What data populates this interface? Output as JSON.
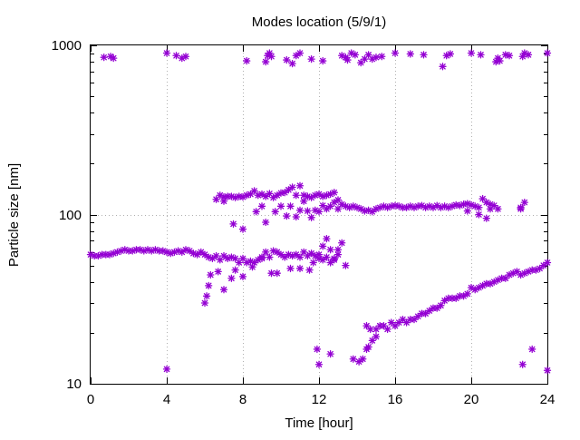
{
  "chart_data": {
    "type": "scatter",
    "title": "Modes location (5/9/1)",
    "xlabel": "Time [hour]",
    "ylabel": "Particle size [nm]",
    "xlim": [
      0,
      24
    ],
    "ylim": [
      10,
      1000
    ],
    "yscale": "log",
    "grid": true,
    "legend": "none",
    "marker": "star",
    "color": "#9400d3",
    "xticks": [
      0,
      4,
      8,
      12,
      16,
      20,
      24
    ],
    "xtick_labels": [
      "0",
      "4",
      "8",
      "12",
      "16",
      "20",
      "24"
    ],
    "yticks": [
      10,
      100,
      1000
    ],
    "ytick_labels": [
      "10",
      "100",
      "1000"
    ],
    "series": [
      {
        "points": [
          [
            0.7,
            850
          ],
          [
            1.2,
            840
          ],
          [
            1.05,
            860
          ],
          [
            4.0,
            900
          ],
          [
            4.5,
            870
          ],
          [
            4.8,
            840
          ],
          [
            5.0,
            860
          ],
          [
            8.2,
            810
          ],
          [
            9.2,
            800
          ],
          [
            9.3,
            870
          ],
          [
            9.4,
            900
          ],
          [
            9.5,
            860
          ],
          [
            10.3,
            820
          ],
          [
            10.6,
            780
          ],
          [
            10.8,
            870
          ],
          [
            11.0,
            900
          ],
          [
            11.6,
            830
          ],
          [
            12.2,
            810
          ],
          [
            13.2,
            870
          ],
          [
            13.4,
            850
          ],
          [
            13.5,
            820
          ],
          [
            13.7,
            900
          ],
          [
            13.9,
            880
          ],
          [
            14.2,
            790
          ],
          [
            14.4,
            830
          ],
          [
            14.6,
            880
          ],
          [
            14.8,
            830
          ],
          [
            15.0,
            850
          ],
          [
            15.3,
            860
          ],
          [
            16.0,
            900
          ],
          [
            16.8,
            890
          ],
          [
            17.5,
            880
          ],
          [
            18.5,
            750
          ],
          [
            18.7,
            870
          ],
          [
            18.9,
            890
          ],
          [
            20.0,
            900
          ],
          [
            20.5,
            880
          ],
          [
            21.3,
            800
          ],
          [
            21.4,
            840
          ],
          [
            21.5,
            810
          ],
          [
            21.8,
            880
          ],
          [
            22.0,
            870
          ],
          [
            22.7,
            860
          ],
          [
            22.8,
            900
          ],
          [
            23.0,
            880
          ],
          [
            24.0,
            900
          ]
        ]
      },
      {
        "points": [
          [
            0.0,
            58
          ],
          [
            0.2,
            57
          ],
          [
            0.4,
            57
          ],
          [
            0.6,
            58
          ],
          [
            0.8,
            58
          ],
          [
            1.0,
            58
          ],
          [
            1.2,
            59
          ],
          [
            1.4,
            60
          ],
          [
            1.6,
            61
          ],
          [
            1.8,
            62
          ],
          [
            2.0,
            61
          ],
          [
            2.2,
            61
          ],
          [
            2.4,
            62
          ],
          [
            2.6,
            62
          ],
          [
            2.8,
            61
          ],
          [
            3.0,
            62
          ],
          [
            3.2,
            61
          ],
          [
            3.4,
            62
          ],
          [
            3.6,
            61
          ],
          [
            3.8,
            61
          ],
          [
            4.0,
            60
          ],
          [
            4.2,
            59
          ],
          [
            4.4,
            60
          ],
          [
            4.6,
            61
          ],
          [
            4.8,
            60
          ],
          [
            5.0,
            62
          ],
          [
            5.2,
            61
          ],
          [
            5.4,
            59
          ],
          [
            5.6,
            58
          ],
          [
            5.8,
            60
          ],
          [
            6.0,
            58
          ],
          [
            6.2,
            56
          ],
          [
            6.4,
            55
          ],
          [
            6.6,
            57
          ],
          [
            6.8,
            54
          ],
          [
            7.0,
            57
          ],
          [
            7.2,
            55
          ],
          [
            7.4,
            56
          ],
          [
            7.6,
            55
          ],
          [
            7.8,
            52
          ],
          [
            8.0,
            55
          ],
          [
            8.2,
            52
          ],
          [
            8.4,
            53
          ],
          [
            8.6,
            52
          ],
          [
            8.8,
            54
          ],
          [
            9.0,
            55
          ],
          [
            9.2,
            60
          ],
          [
            9.4,
            56
          ],
          [
            9.6,
            61
          ],
          [
            9.8,
            60
          ],
          [
            10.0,
            58
          ],
          [
            10.2,
            56
          ],
          [
            10.4,
            58
          ],
          [
            10.6,
            57
          ],
          [
            10.8,
            58
          ],
          [
            11.0,
            56
          ],
          [
            11.2,
            60
          ],
          [
            11.4,
            57
          ],
          [
            11.6,
            59
          ],
          [
            11.8,
            57
          ],
          [
            12.0,
            58
          ],
          [
            12.2,
            54
          ],
          [
            12.4,
            56
          ],
          [
            12.6,
            52
          ],
          [
            12.8,
            55
          ],
          [
            13.0,
            58
          ]
        ]
      },
      {
        "points": [
          [
            6.0,
            30
          ],
          [
            6.1,
            33
          ],
          [
            6.2,
            38
          ],
          [
            6.3,
            44
          ],
          [
            6.7,
            46
          ],
          [
            7.0,
            36
          ],
          [
            7.4,
            42
          ],
          [
            7.6,
            47
          ],
          [
            8.0,
            43
          ],
          [
            8.5,
            49
          ],
          [
            9.0,
            56
          ],
          [
            9.5,
            45
          ],
          [
            9.8,
            45
          ],
          [
            10.5,
            48
          ],
          [
            11.0,
            48
          ],
          [
            11.5,
            47
          ],
          [
            11.7,
            52
          ],
          [
            12.0,
            55
          ],
          [
            12.2,
            65
          ],
          [
            12.4,
            72
          ],
          [
            12.6,
            62
          ],
          [
            12.8,
            54
          ],
          [
            13.0,
            62
          ],
          [
            13.2,
            68
          ],
          [
            13.4,
            50
          ]
        ]
      },
      {
        "points": [
          [
            6.6,
            123
          ],
          [
            6.8,
            130
          ],
          [
            7.0,
            127
          ],
          [
            7.2,
            128
          ],
          [
            7.4,
            128
          ],
          [
            7.6,
            126
          ],
          [
            7.8,
            128
          ],
          [
            8.0,
            127
          ],
          [
            8.2,
            130
          ],
          [
            8.4,
            132
          ],
          [
            8.6,
            138
          ],
          [
            8.8,
            130
          ],
          [
            9.0,
            132
          ],
          [
            9.2,
            128
          ],
          [
            9.4,
            133
          ],
          [
            9.6,
            126
          ],
          [
            9.8,
            130
          ],
          [
            10.0,
            134
          ],
          [
            10.2,
            135
          ],
          [
            10.4,
            140
          ],
          [
            10.6,
            145
          ],
          [
            10.8,
            130
          ],
          [
            11.0,
            148
          ],
          [
            11.2,
            130
          ],
          [
            11.4,
            128
          ],
          [
            11.6,
            126
          ],
          [
            11.8,
            130
          ],
          [
            12.0,
            132
          ],
          [
            12.2,
            128
          ],
          [
            12.4,
            130
          ],
          [
            12.6,
            132
          ],
          [
            12.8,
            135
          ],
          [
            13.0,
            122
          ],
          [
            13.2,
            115
          ],
          [
            13.4,
            112
          ],
          [
            13.6,
            110
          ],
          [
            13.8,
            112
          ],
          [
            14.0,
            110
          ],
          [
            14.2,
            108
          ],
          [
            14.4,
            105
          ],
          [
            14.6,
            106
          ],
          [
            14.8,
            104
          ],
          [
            15.0,
            108
          ],
          [
            15.2,
            110
          ],
          [
            15.4,
            112
          ],
          [
            15.6,
            110
          ],
          [
            15.8,
            112
          ],
          [
            16.0,
            113
          ],
          [
            16.2,
            112
          ],
          [
            16.4,
            110
          ],
          [
            16.6,
            110
          ],
          [
            16.8,
            112
          ],
          [
            17.0,
            110
          ],
          [
            17.2,
            112
          ],
          [
            17.4,
            113
          ],
          [
            17.6,
            110
          ],
          [
            17.8,
            112
          ],
          [
            18.0,
            110
          ],
          [
            18.2,
            113
          ],
          [
            18.4,
            110
          ],
          [
            18.6,
            112
          ],
          [
            18.8,
            110
          ],
          [
            19.0,
            112
          ],
          [
            19.2,
            114
          ],
          [
            19.4,
            113
          ],
          [
            19.6,
            115
          ],
          [
            19.8,
            116
          ],
          [
            20.0,
            114
          ],
          [
            20.2,
            112
          ],
          [
            20.4,
            110
          ],
          [
            20.6,
            124
          ],
          [
            20.8,
            118
          ],
          [
            21.0,
            115
          ],
          [
            21.2,
            113
          ],
          [
            21.4,
            108
          ],
          [
            22.6,
            108
          ],
          [
            22.8,
            118
          ]
        ]
      },
      {
        "points": [
          [
            7.0,
            120
          ],
          [
            7.5,
            88
          ],
          [
            8.0,
            82
          ],
          [
            8.7,
            104
          ],
          [
            9.0,
            112
          ],
          [
            9.2,
            90
          ],
          [
            9.7,
            104
          ],
          [
            10.0,
            112
          ],
          [
            10.3,
            98
          ],
          [
            10.5,
            112
          ],
          [
            10.8,
            97
          ],
          [
            11.0,
            106
          ],
          [
            11.2,
            120
          ],
          [
            11.4,
            105
          ],
          [
            11.6,
            96
          ],
          [
            11.8,
            106
          ],
          [
            12.0,
            104
          ],
          [
            12.2,
            113
          ],
          [
            12.4,
            108
          ],
          [
            12.6,
            112
          ],
          [
            12.8,
            118
          ],
          [
            13.0,
            108
          ],
          [
            19.8,
            105
          ],
          [
            20.4,
            100
          ],
          [
            20.8,
            95
          ],
          [
            21.0,
            108
          ],
          [
            22.6,
            110
          ]
        ]
      },
      {
        "points": [
          [
            14.5,
            22
          ],
          [
            14.7,
            21
          ],
          [
            15.0,
            21
          ],
          [
            15.2,
            22
          ],
          [
            15.4,
            22
          ],
          [
            15.6,
            21
          ],
          [
            15.8,
            23
          ],
          [
            16.0,
            22
          ],
          [
            16.2,
            23
          ],
          [
            16.4,
            24
          ],
          [
            16.6,
            23
          ],
          [
            16.8,
            24
          ],
          [
            17.0,
            24
          ],
          [
            17.2,
            25
          ],
          [
            17.4,
            26
          ],
          [
            17.6,
            26
          ],
          [
            17.8,
            27
          ],
          [
            18.0,
            28
          ],
          [
            18.2,
            28
          ],
          [
            18.4,
            29
          ],
          [
            18.6,
            31
          ],
          [
            18.8,
            32
          ],
          [
            19.0,
            32
          ],
          [
            19.2,
            32
          ],
          [
            19.4,
            33
          ],
          [
            19.6,
            33
          ],
          [
            19.8,
            34
          ],
          [
            20.0,
            37
          ],
          [
            20.2,
            36
          ],
          [
            20.4,
            37
          ],
          [
            20.6,
            38
          ],
          [
            20.8,
            39
          ],
          [
            21.0,
            39
          ],
          [
            21.2,
            40
          ],
          [
            21.4,
            41
          ],
          [
            21.6,
            42
          ],
          [
            21.8,
            42
          ],
          [
            22.0,
            44
          ],
          [
            22.2,
            45
          ],
          [
            22.4,
            46
          ],
          [
            22.6,
            44
          ],
          [
            22.8,
            45
          ],
          [
            23.0,
            46
          ],
          [
            23.2,
            47
          ],
          [
            23.4,
            47
          ],
          [
            23.6,
            48
          ],
          [
            23.8,
            50
          ],
          [
            24.0,
            52
          ]
        ]
      },
      {
        "points": [
          [
            4.0,
            12.2
          ],
          [
            11.9,
            16
          ],
          [
            12.0,
            13
          ],
          [
            12.6,
            15
          ],
          [
            13.8,
            14
          ],
          [
            14.1,
            13.5
          ],
          [
            14.3,
            14
          ],
          [
            14.5,
            16
          ],
          [
            14.6,
            16.5
          ],
          [
            14.8,
            18
          ],
          [
            15.0,
            19
          ],
          [
            22.7,
            13
          ],
          [
            23.2,
            16
          ],
          [
            24.0,
            12
          ]
        ]
      }
    ]
  }
}
